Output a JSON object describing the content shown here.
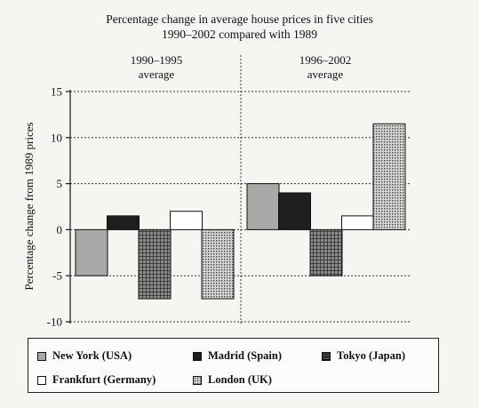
{
  "chart_data": {
    "type": "bar",
    "title_lines": [
      "Percentage change in average house prices in five cities",
      "1990–2002 compared with 1989"
    ],
    "ylabel": "Percentage change from 1989 prices",
    "ylim": [
      -10,
      15
    ],
    "yticks": [
      "15",
      "10",
      "5",
      "0",
      "-5",
      "-10"
    ],
    "grid": true,
    "legend_position": "bottom",
    "categories": [
      {
        "line1": "1990–1995",
        "line2": "average"
      },
      {
        "line1": "1996–2002",
        "line2": "average"
      }
    ],
    "series": [
      {
        "name": "New York (USA)",
        "values": [
          -5,
          5
        ],
        "fill": "#a8a8a8",
        "pattern": "solid"
      },
      {
        "name": "Madrid (Spain)",
        "values": [
          1.5,
          4
        ],
        "fill": "#1e1e1e",
        "pattern": "solid"
      },
      {
        "name": "Tokyo (Japan)",
        "values": [
          -7.5,
          -5
        ],
        "fill": "#4a4a4a",
        "pattern": "grid"
      },
      {
        "name": "Frankfurt (Germany)",
        "values": [
          2,
          1.5
        ],
        "fill": "#ffffff",
        "pattern": "solid"
      },
      {
        "name": "London (UK)",
        "values": [
          -7.5,
          11.5
        ],
        "fill": "#b8b8b8",
        "pattern": "dots"
      }
    ]
  }
}
